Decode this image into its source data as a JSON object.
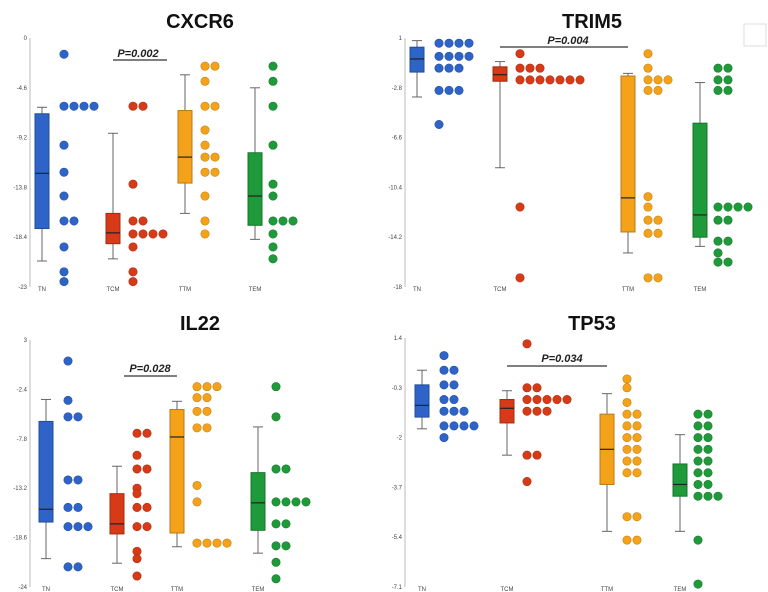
{
  "colors": {
    "TN": "#2e64c8",
    "TCM": "#d63a17",
    "TTM": "#f5a21b",
    "TEM": "#1f9a3a"
  },
  "chart_data": [
    {
      "type": "box+strip",
      "title": "CXCR6",
      "categories": [
        "TN",
        "TCM",
        "TTM",
        "TEM"
      ],
      "yticks": [
        "0",
        "-4.6",
        "-9.2",
        "-13.8",
        "-18.4",
        "-23"
      ],
      "ylim": [
        -23,
        0
      ],
      "pvalue": {
        "text": "P=0.002",
        "between": [
          "TCM",
          "TTM"
        ]
      },
      "boxes": [
        {
          "category": "TN",
          "min": -20.6,
          "q1": -17.6,
          "median": -12.5,
          "q3": -7.0,
          "max": -6.4
        },
        {
          "category": "TCM",
          "min": -20.4,
          "q1": -19.0,
          "median": -18.0,
          "q3": -16.2,
          "max": -8.8
        },
        {
          "category": "TTM",
          "min": -16.2,
          "q1": -13.4,
          "median": -11.0,
          "q3": -6.7,
          "max": -3.4
        },
        {
          "category": "TEM",
          "min": -18.6,
          "q1": -17.3,
          "median": -14.6,
          "q3": -10.6,
          "max": -4.6
        }
      ],
      "points": [
        {
          "category": "TN",
          "values": [
            -1.5,
            -6.3,
            -6.3,
            -6.3,
            -6.3,
            -9.9,
            -12.4,
            -14.6,
            -16.9,
            -16.9,
            -19.3,
            -21.6,
            -22.5
          ]
        },
        {
          "category": "TCM",
          "values": [
            -6.3,
            -6.3,
            -13.5,
            -16.9,
            -16.9,
            -18.1,
            -18.1,
            -18.1,
            -18.1,
            -19.3,
            -21.6,
            -22.5
          ]
        },
        {
          "category": "TTM",
          "values": [
            -2.6,
            -2.6,
            -4.0,
            -6.3,
            -6.3,
            -8.5,
            -9.9,
            -11.0,
            -11.0,
            -12.4,
            -12.4,
            -14.6,
            -16.9,
            -18.1
          ]
        },
        {
          "category": "TEM",
          "values": [
            -2.6,
            -4.0,
            -6.3,
            -9.9,
            -13.5,
            -14.6,
            -16.9,
            -16.9,
            -16.9,
            -18.1,
            -19.3,
            -20.4
          ]
        }
      ]
    },
    {
      "type": "box+strip",
      "title": "TRIM5",
      "categories": [
        "TN",
        "TCM",
        "TTM",
        "TEM"
      ],
      "yticks": [
        "1",
        "-2.8",
        "-6.6",
        "-10.4",
        "-14.2",
        "-18"
      ],
      "ylim": [
        -18,
        1
      ],
      "pvalue": {
        "text": "P=0.004",
        "between": [
          "TCM",
          "TTM"
        ]
      },
      "boxes": [
        {
          "category": "TN",
          "min": -3.5,
          "q1": -1.6,
          "median": -0.6,
          "q3": 0.3,
          "max": 0.8
        },
        {
          "category": "TCM",
          "min": -8.9,
          "q1": -2.3,
          "median": -1.8,
          "q3": -1.2,
          "max": -0.8
        },
        {
          "category": "TTM",
          "min": -15.4,
          "q1": -13.8,
          "median": -11.2,
          "q3": -1.9,
          "max": -1.7
        },
        {
          "category": "TEM",
          "min": -14.9,
          "q1": -14.2,
          "median": -12.5,
          "q3": -5.5,
          "max": -2.4
        }
      ],
      "points": [
        {
          "category": "TN",
          "values": [
            0.6,
            0.6,
            0.6,
            0.6,
            -0.4,
            -0.4,
            -0.4,
            -0.4,
            -1.3,
            -1.3,
            -1.3,
            -3.0,
            -3.0,
            -3.0,
            -5.6
          ]
        },
        {
          "category": "TCM",
          "values": [
            -0.2,
            -1.3,
            -1.3,
            -1.3,
            -2.2,
            -2.2,
            -2.2,
            -2.2,
            -2.2,
            -2.2,
            -2.2,
            -11.9,
            -17.3
          ]
        },
        {
          "category": "TTM",
          "values": [
            -0.2,
            -1.3,
            -2.2,
            -2.2,
            -2.2,
            -3.0,
            -3.0,
            -11.1,
            -11.9,
            -12.9,
            -12.9,
            -13.9,
            -13.9,
            -17.3,
            -17.3
          ]
        },
        {
          "category": "TEM",
          "values": [
            -1.3,
            -1.3,
            -2.2,
            -2.2,
            -3.0,
            -3.0,
            -11.9,
            -11.9,
            -11.9,
            -11.9,
            -12.9,
            -12.9,
            -14.5,
            -14.5,
            -15.4,
            -16.1,
            -16.1
          ]
        }
      ]
    },
    {
      "type": "box+strip",
      "title": "IL22",
      "categories": [
        "TN",
        "TCM",
        "TTM",
        "TEM"
      ],
      "yticks": [
        "3",
        "-2.4",
        "-7.8",
        "-13.2",
        "-18.6",
        "-24"
      ],
      "ylim": [
        -24,
        3
      ],
      "pvalue": {
        "text": "P=0.028",
        "between": [
          "TCM",
          "TTM"
        ]
      },
      "boxes": [
        {
          "category": "TN",
          "min": -20.9,
          "q1": -16.9,
          "median": -15.5,
          "q3": -5.9,
          "max": -3.5
        },
        {
          "category": "TCM",
          "min": -21.4,
          "q1": -18.2,
          "median": -17.1,
          "q3": -13.8,
          "max": -10.8
        },
        {
          "category": "TTM",
          "min": -19.6,
          "q1": -18.1,
          "median": -7.6,
          "q3": -4.6,
          "max": -3.7
        },
        {
          "category": "TEM",
          "min": -20.3,
          "q1": -17.8,
          "median": -14.8,
          "q3": -11.5,
          "max": -6.5
        }
      ],
      "points": [
        {
          "category": "TN",
          "values": [
            0.7,
            -3.6,
            -5.4,
            -5.4,
            -12.3,
            -12.3,
            -15.3,
            -15.3,
            -17.4,
            -17.4,
            -17.4,
            -21.8,
            -21.8
          ]
        },
        {
          "category": "TCM",
          "values": [
            -7.2,
            -7.2,
            -9.6,
            -11.1,
            -11.1,
            -13.2,
            -13.8,
            -15.3,
            -15.3,
            -17.4,
            -17.4,
            -20.1,
            -20.9,
            -22.8
          ]
        },
        {
          "category": "TTM",
          "values": [
            -2.1,
            -2.1,
            -2.1,
            -3.3,
            -3.3,
            -4.8,
            -4.8,
            -6.6,
            -6.6,
            -12.9,
            -14.7,
            -19.2,
            -19.2,
            -19.2,
            -19.2
          ]
        },
        {
          "category": "TEM",
          "values": [
            -2.1,
            -5.4,
            -11.1,
            -11.1,
            -14.7,
            -14.7,
            -14.7,
            -14.7,
            -17.1,
            -17.1,
            -19.5,
            -19.5,
            -21.3,
            -23.1
          ]
        }
      ]
    },
    {
      "type": "box+strip",
      "title": "TP53",
      "categories": [
        "TN",
        "TCM",
        "TTM",
        "TEM"
      ],
      "yticks": [
        "1.4",
        "-0.3",
        "-2",
        "-3.7",
        "-5.4",
        "-7.1"
      ],
      "ylim": [
        -7.1,
        1.4
      ],
      "pvalue": {
        "text": "P=0.034",
        "between": [
          "TCM",
          "TTM"
        ]
      },
      "boxes": [
        {
          "category": "TN",
          "min": -1.7,
          "q1": -1.3,
          "median": -0.9,
          "q3": -0.2,
          "max": 0.3
        },
        {
          "category": "TCM",
          "min": -2.6,
          "q1": -1.5,
          "median": -1.0,
          "q3": -0.7,
          "max": -0.4
        },
        {
          "category": "TTM",
          "min": -5.2,
          "q1": -3.6,
          "median": -2.4,
          "q3": -1.2,
          "max": -0.5
        },
        {
          "category": "TEM",
          "min": -5.2,
          "q1": -4.0,
          "median": -3.6,
          "q3": -2.9,
          "max": -1.9
        }
      ],
      "points": [
        {
          "category": "TN",
          "values": [
            0.8,
            0.3,
            0.3,
            -0.2,
            -0.2,
            -0.7,
            -0.7,
            -1.1,
            -1.1,
            -1.1,
            -1.6,
            -1.6,
            -1.6,
            -1.6,
            -2.0
          ]
        },
        {
          "category": "TCM",
          "values": [
            1.2,
            -0.3,
            -0.3,
            -0.7,
            -0.7,
            -0.7,
            -0.7,
            -0.7,
            -1.1,
            -1.1,
            -1.1,
            -2.6,
            -2.6,
            -3.5
          ]
        },
        {
          "category": "TTM",
          "values": [
            0.0,
            -0.3,
            -0.8,
            -1.2,
            -1.2,
            -1.6,
            -1.6,
            -2.0,
            -2.0,
            -2.4,
            -2.4,
            -2.8,
            -2.8,
            -3.2,
            -3.2,
            -4.7,
            -4.7,
            -5.5,
            -5.5
          ]
        },
        {
          "category": "TEM",
          "values": [
            -1.2,
            -1.2,
            -1.6,
            -1.6,
            -2.0,
            -2.0,
            -2.4,
            -2.4,
            -2.8,
            -2.8,
            -3.2,
            -3.2,
            -3.6,
            -3.6,
            -4.0,
            -4.0,
            -4.0,
            -5.5,
            -7.0
          ]
        }
      ]
    }
  ]
}
